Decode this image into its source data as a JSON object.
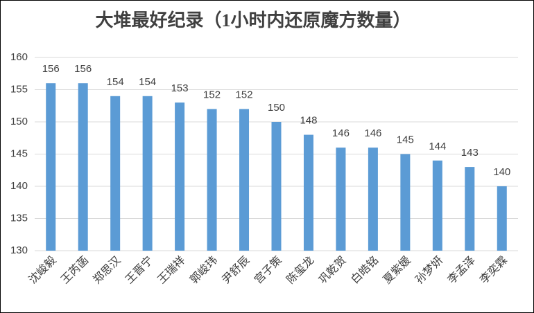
{
  "chart_data": {
    "type": "bar",
    "title": "大堆最好纪录（1小时内还原魔方数量）",
    "categories": [
      "沈峻毅",
      "王芮菡",
      "郑思汉",
      "王晋宁",
      "王瑞祥",
      "郭峻玮",
      "尹舒辰",
      "宫子策",
      "陈玺龙",
      "巩乾贺",
      "白皓铭",
      "夏紫媛",
      "孙梦妍",
      "李孟泽",
      "李奕霖"
    ],
    "values": [
      156,
      156,
      154,
      154,
      153,
      152,
      152,
      150,
      148,
      146,
      146,
      145,
      144,
      143,
      140
    ],
    "color": "#5b9bd5",
    "ylim": [
      130,
      160
    ],
    "yticks": [
      130,
      135,
      140,
      145,
      150,
      155,
      160
    ],
    "grid": true
  }
}
